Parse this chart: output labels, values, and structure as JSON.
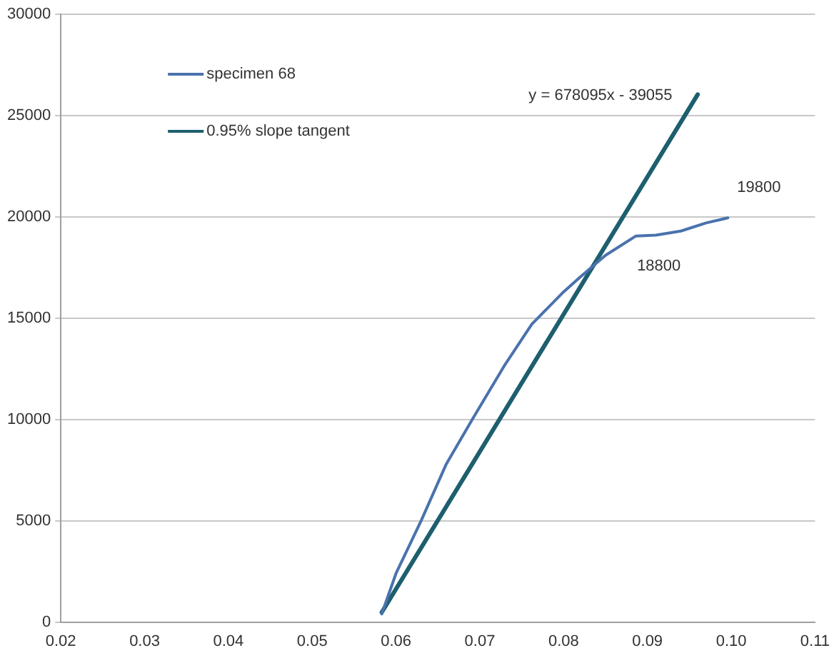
{
  "chart_data": {
    "type": "line",
    "xlim": [
      0.02,
      0.11
    ],
    "ylim": [
      0,
      30000
    ],
    "xticks": [
      0.02,
      0.03,
      0.04,
      0.05,
      0.06,
      0.07,
      0.08,
      0.09,
      {
        "value": 0.1,
        "label": "0.10"
      },
      0.11
    ],
    "yticks": [
      0,
      5000,
      10000,
      15000,
      20000,
      25000,
      30000
    ],
    "grid": "y",
    "legend": "top left",
    "marker": "none",
    "line_style": "solid",
    "series": [
      {
        "name": "specimen 68",
        "color": "#4a72ad",
        "x": [
          0.0583,
          0.06,
          0.063,
          0.066,
          0.0691,
          0.073,
          0.0762,
          0.08,
          0.0819,
          0.085,
          0.0886,
          0.091,
          0.094,
          0.097,
          0.0996
        ],
        "values": [
          400,
          2400,
          5000,
          7800,
          10000,
          12700,
          14700,
          16300,
          17000,
          18100,
          19050,
          19100,
          19300,
          19700,
          19950
        ]
      },
      {
        "name": "0.95% slope tangent",
        "color": "#1d5f6e",
        "x": [
          0.0583,
          0.096
        ],
        "values": [
          480,
          26040
        ]
      }
    ],
    "annotations": [
      "y = 678095x - 39055",
      "18800",
      "19800"
    ]
  }
}
